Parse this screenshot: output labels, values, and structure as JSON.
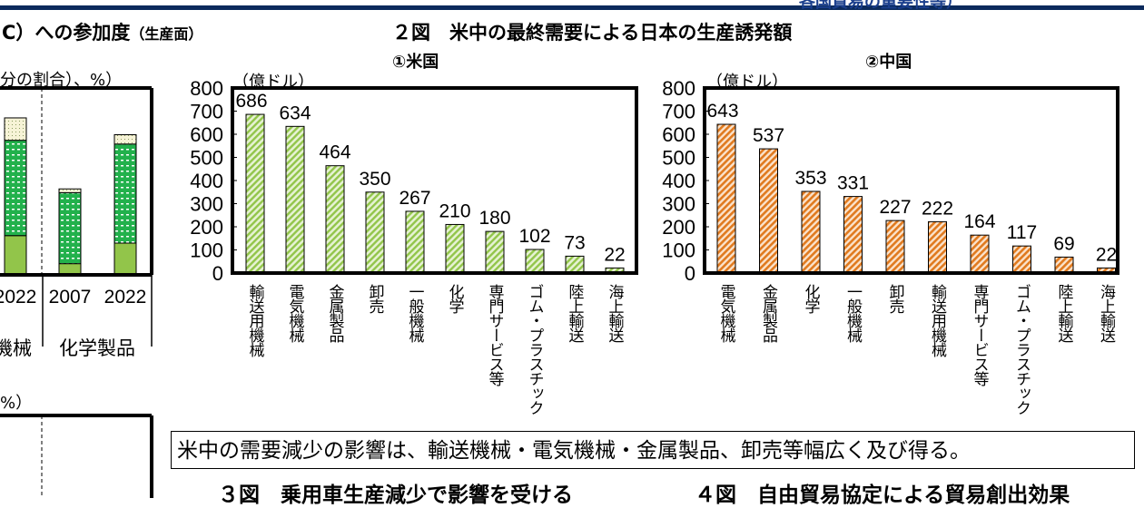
{
  "header": {
    "top_text": "各国貿易の重要性等）"
  },
  "left_section": {
    "title": "C）への参加度",
    "title_small": "（生産面）",
    "unit_label": "分の割合）、%）",
    "unit_label_2": "%）"
  },
  "fig2": {
    "title": "２図　米中の最終需要による日本の生産誘発額"
  },
  "message": "米中の需要減少の影響は、輸送機械・電気機械・金属製品、卸売等幅広く及び得る。",
  "fig3_title": "３図　乗用車生産減少で影響を受ける",
  "fig4_title": "４図　自由貿易協定による貿易創出効果",
  "colors": {
    "us_bar": "#92c54a",
    "china_bar": "#e07a1f",
    "navy": "#0b2a5c"
  },
  "chart_data": [
    {
      "type": "bar",
      "stacked": true,
      "title": "",
      "categories": [
        "2022",
        "2007",
        "2022"
      ],
      "groups": [
        "機械",
        "化学製品"
      ],
      "note": "partially visible, values estimated relative to plot height",
      "series": [
        {
          "values": [
            21,
            6,
            17
          ],
          "color": "#92c54a",
          "pattern": "solid"
        },
        {
          "values": [
            51,
            38,
            53
          ],
          "color": "#22b14c",
          "pattern": "dotted"
        },
        {
          "values": [
            12,
            2,
            5
          ],
          "color": "#f4f0c8",
          "pattern": "dotted"
        }
      ],
      "ylim": [
        0,
        100
      ]
    },
    {
      "type": "bar",
      "title": "①米国",
      "ylabel": "（億ドル）",
      "ylim": [
        0,
        800
      ],
      "yticks": [
        0,
        100,
        200,
        300,
        400,
        500,
        600,
        700,
        800
      ],
      "categories": [
        "輸送用機械",
        "電気機械",
        "金属製品",
        "卸売",
        "一般機械",
        "化学",
        "専門サービス等",
        "ゴム・プラスチック",
        "陸上輸送",
        "海上輸送"
      ],
      "values": [
        686,
        634,
        464,
        350,
        267,
        210,
        180,
        102,
        73,
        22
      ],
      "color": "#92c54a",
      "pattern": "diagonal-hatch"
    },
    {
      "type": "bar",
      "title": "②中国",
      "ylabel": "（億ドル）",
      "ylim": [
        0,
        800
      ],
      "yticks": [
        0,
        100,
        200,
        300,
        400,
        500,
        600,
        700,
        800
      ],
      "categories": [
        "電気機械",
        "金属製品",
        "化学",
        "一般機械",
        "卸売",
        "輸送用機械",
        "専門サービス等",
        "ゴム・プラスチック",
        "陸上輸送",
        "海上輸送"
      ],
      "values": [
        643,
        537,
        353,
        331,
        227,
        222,
        164,
        117,
        69,
        22
      ],
      "color": "#e07a1f",
      "pattern": "diagonal-hatch"
    }
  ]
}
